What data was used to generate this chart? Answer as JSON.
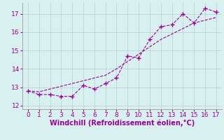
{
  "xlabel": "Windchill (Refroidissement éolien,°C)",
  "x_actual": [
    0,
    1,
    2,
    3,
    4,
    5,
    6,
    7,
    8,
    9,
    10,
    11,
    12,
    13,
    14,
    15,
    16,
    17
  ],
  "y_actual": [
    12.8,
    12.6,
    12.6,
    12.5,
    12.5,
    13.1,
    12.9,
    13.2,
    13.5,
    14.7,
    14.6,
    15.6,
    16.3,
    16.4,
    17.0,
    16.5,
    17.3,
    17.1
  ],
  "y_trend": [
    12.8,
    12.75,
    12.9,
    13.05,
    13.2,
    13.35,
    13.5,
    13.65,
    14.0,
    14.4,
    14.8,
    15.2,
    15.6,
    15.9,
    16.2,
    16.5,
    16.65,
    16.8
  ],
  "line_color": "#990099",
  "bg_color": "#d8f0f0",
  "grid_color": "#b8d0d0",
  "xlim": [
    -0.5,
    17.5
  ],
  "ylim": [
    11.8,
    17.6
  ],
  "xticks": [
    0,
    1,
    2,
    3,
    4,
    5,
    6,
    7,
    8,
    9,
    10,
    11,
    12,
    13,
    14,
    15,
    16,
    17
  ],
  "yticks": [
    12,
    13,
    14,
    15,
    16,
    17
  ],
  "xlabel_fontsize": 7,
  "tick_fontsize": 6.5
}
